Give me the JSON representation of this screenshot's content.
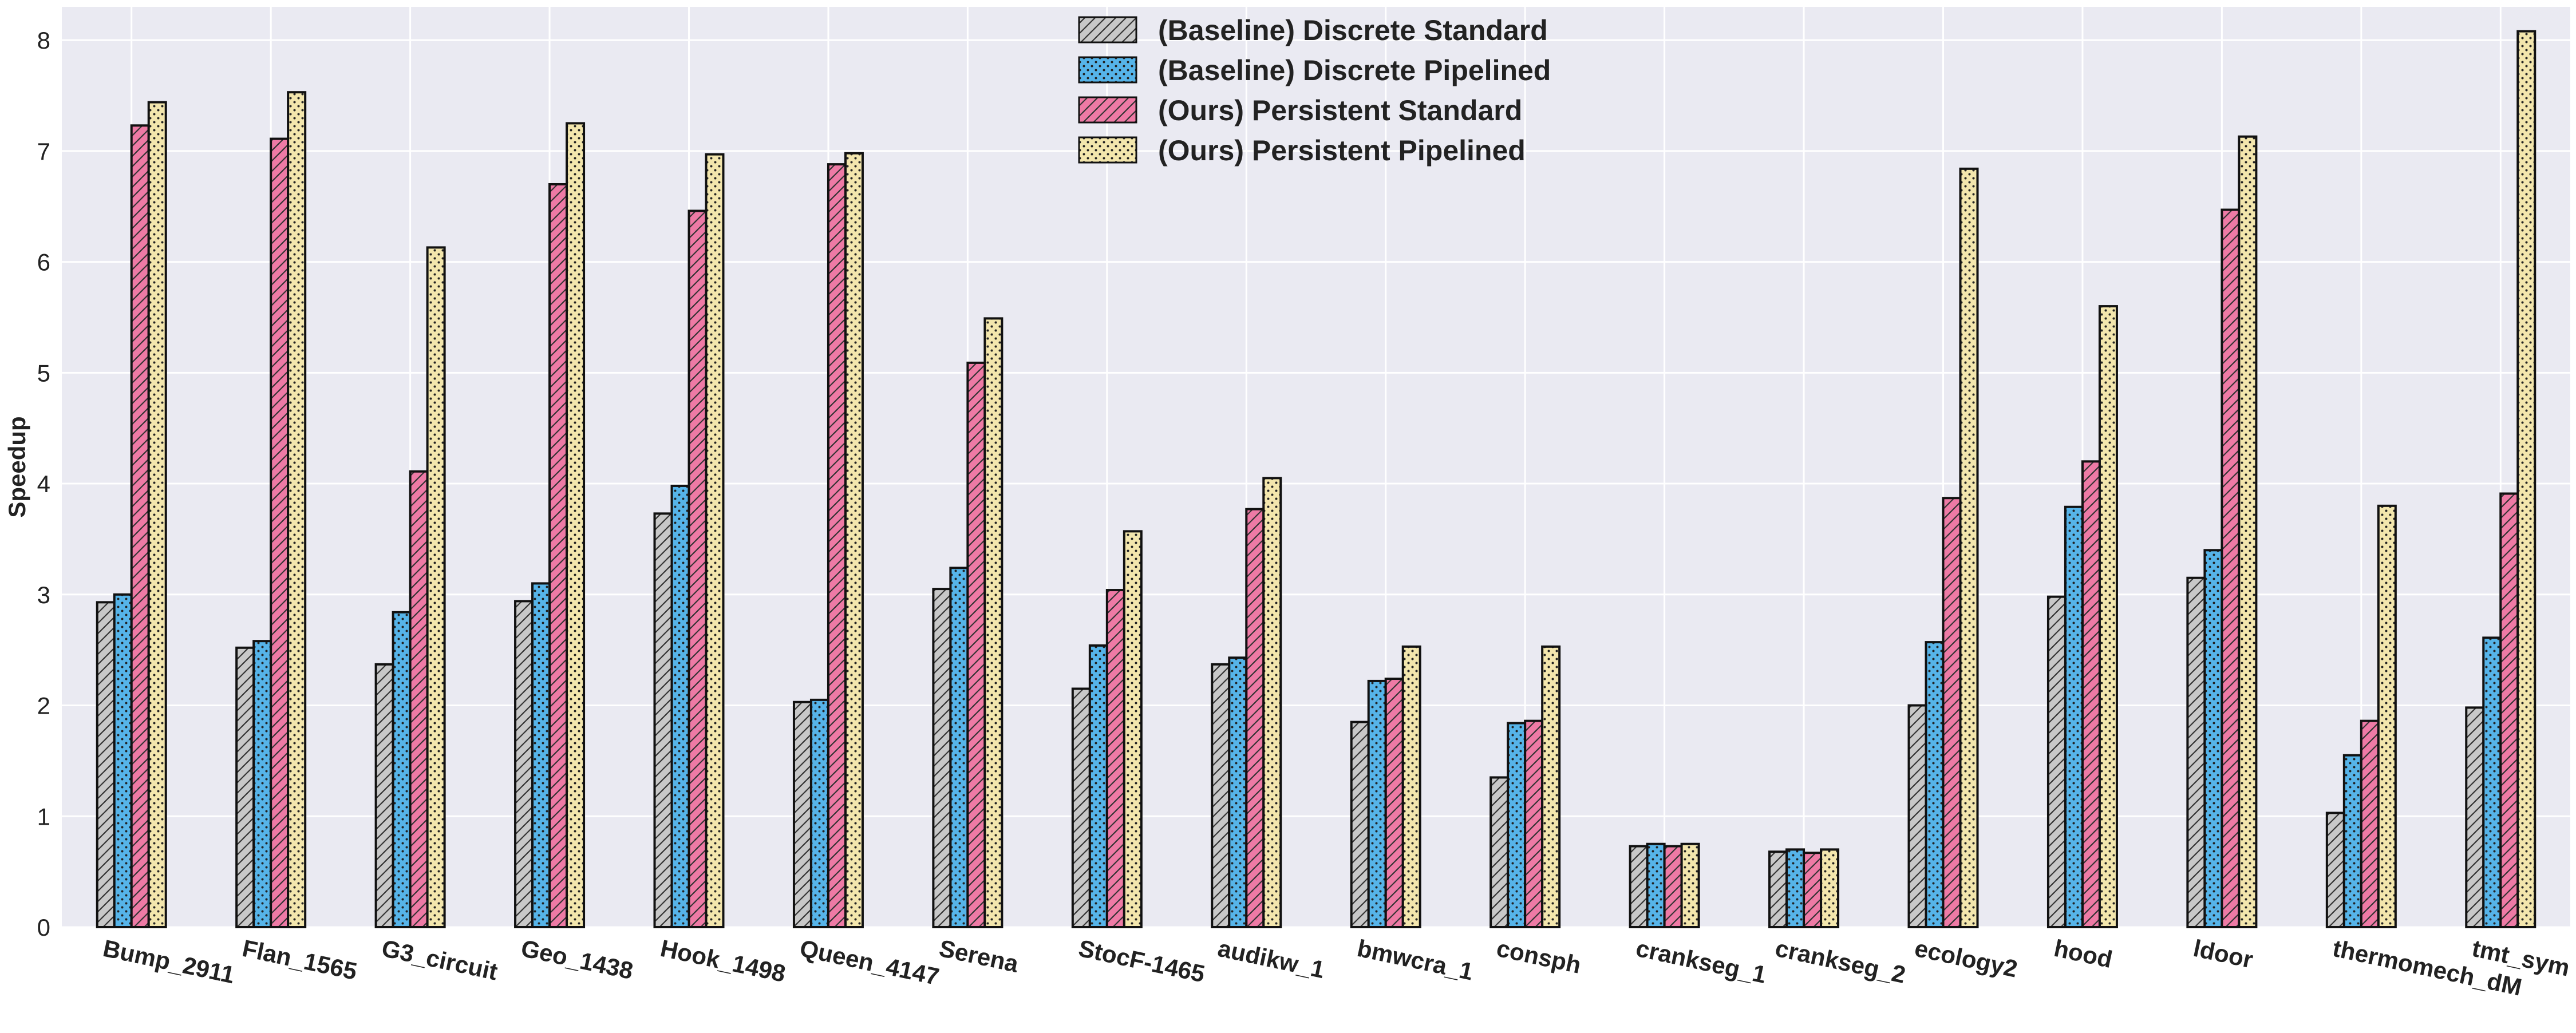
{
  "chart_data": {
    "type": "bar",
    "title": "",
    "xlabel": "",
    "ylabel": "Speedup",
    "ylim": [
      0,
      8.3
    ],
    "yticks": [
      0,
      1,
      2,
      3,
      4,
      5,
      6,
      7,
      8
    ],
    "grid": true,
    "legend_position": "top-center",
    "categories": [
      "Bump_2911",
      "Flan_1565",
      "G3_circuit",
      "Geo_1438",
      "Hook_1498",
      "Queen_4147",
      "Serena",
      "StocF-1465",
      "audikw_1",
      "bmwcra_1",
      "consph",
      "crankseg_1",
      "crankseg_2",
      "ecology2",
      "hood",
      "ldoor",
      "thermomech_dM",
      "tmt_sym"
    ],
    "series": [
      {
        "name": "(Baseline) Discrete Standard",
        "color": "#c8c8c8",
        "pattern": "hatch",
        "values": [
          2.93,
          2.52,
          2.37,
          2.94,
          3.73,
          2.03,
          3.05,
          2.15,
          2.37,
          1.85,
          1.35,
          0.73,
          0.68,
          2.0,
          2.98,
          3.15,
          1.03,
          1.98
        ]
      },
      {
        "name": "(Baseline) Discrete Pipelined",
        "color": "#56b4e9",
        "pattern": "dots",
        "values": [
          3.0,
          2.58,
          2.84,
          3.1,
          3.98,
          2.05,
          3.24,
          2.54,
          2.43,
          2.22,
          1.84,
          0.75,
          0.7,
          2.57,
          3.79,
          3.4,
          1.55,
          2.61
        ]
      },
      {
        "name": "(Ours) Persistent Standard",
        "color": "#ee7aa5",
        "pattern": "hatch",
        "values": [
          7.23,
          7.11,
          4.11,
          6.7,
          6.46,
          6.88,
          5.09,
          3.04,
          3.77,
          2.24,
          1.86,
          0.73,
          0.67,
          3.87,
          4.2,
          6.47,
          1.86,
          3.91
        ]
      },
      {
        "name": "(Ours) Persistent Pipelined",
        "color": "#f3e6ad",
        "pattern": "dots",
        "values": [
          7.44,
          7.53,
          6.13,
          7.25,
          6.97,
          6.98,
          5.49,
          3.57,
          4.05,
          2.53,
          2.53,
          0.75,
          0.7,
          6.84,
          5.6,
          7.13,
          3.8,
          8.08
        ]
      }
    ]
  }
}
